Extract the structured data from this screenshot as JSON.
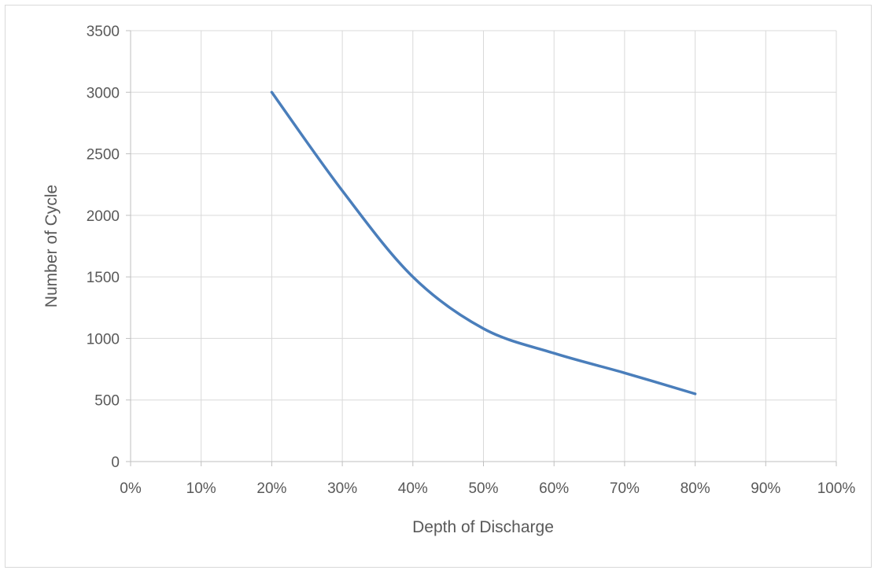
{
  "chart_data": {
    "type": "line",
    "title": "",
    "xlabel": "Depth of Discharge",
    "ylabel": "Number of Cycle",
    "x_ticks": [
      "0%",
      "10%",
      "20%",
      "30%",
      "40%",
      "50%",
      "60%",
      "70%",
      "80%",
      "90%",
      "100%"
    ],
    "y_ticks": [
      "0",
      "500",
      "1000",
      "1500",
      "2000",
      "2500",
      "3000",
      "3500"
    ],
    "xlim": [
      0,
      100
    ],
    "ylim": [
      0,
      3500
    ],
    "grid": true,
    "legend": "none",
    "series": [
      {
        "color": "#4a7ebb",
        "x": [
          20,
          30,
          40,
          50,
          60,
          70,
          80
        ],
        "y": [
          3000,
          2200,
          1500,
          1080,
          880,
          720,
          550
        ]
      }
    ]
  }
}
